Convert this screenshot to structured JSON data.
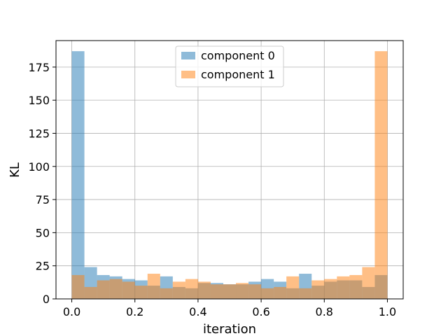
{
  "chart_data": {
    "type": "bar",
    "subtype": "overlapping-histogram",
    "xlabel": "iteration",
    "ylabel": "KL",
    "xlim": [
      -0.05,
      1.05
    ],
    "ylim": [
      0,
      195
    ],
    "xticks": [
      0.0,
      0.2,
      0.4,
      0.6,
      0.8,
      1.0
    ],
    "xtick_labels": [
      "0.0",
      "0.2",
      "0.4",
      "0.6",
      "0.8",
      "1.0"
    ],
    "yticks": [
      0,
      25,
      50,
      75,
      100,
      125,
      150,
      175
    ],
    "ytick_labels": [
      "0",
      "25",
      "50",
      "75",
      "100",
      "125",
      "150",
      "175"
    ],
    "grid": true,
    "legend_position": "top-center",
    "bin_edges": [
      0.0,
      0.04,
      0.08,
      0.12,
      0.16,
      0.2,
      0.24,
      0.28,
      0.32,
      0.36,
      0.4,
      0.44,
      0.48,
      0.52,
      0.56,
      0.6,
      0.64,
      0.68,
      0.72,
      0.76,
      0.8,
      0.84,
      0.88,
      0.92,
      0.96,
      1.0
    ],
    "series": [
      {
        "name": "component 0",
        "color": "#1f77b4",
        "opacity": 0.5,
        "values": [
          187,
          24,
          18,
          17,
          15,
          14,
          10,
          17,
          9,
          8,
          12,
          12,
          11,
          11,
          13,
          15,
          13,
          8,
          19,
          10,
          13,
          14,
          14,
          9,
          18
        ]
      },
      {
        "name": "component 1",
        "color": "#ff7f0e",
        "opacity": 0.5,
        "values": [
          18,
          9,
          14,
          15,
          13,
          10,
          19,
          8,
          13,
          15,
          13,
          11,
          11,
          12,
          11,
          8,
          9,
          17,
          8,
          14,
          15,
          17,
          18,
          24,
          187
        ]
      }
    ]
  }
}
